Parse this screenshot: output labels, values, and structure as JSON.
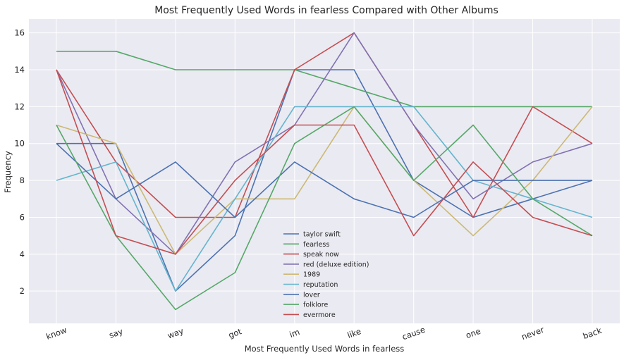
{
  "chart_data": {
    "type": "line",
    "title": "Most Frequently Used Words in fearless Compared with Other Albums",
    "xlabel": "Most Frequently Used Words in fearless",
    "ylabel": "Frequency",
    "categories": [
      "know",
      "say",
      "way",
      "got",
      "im",
      "like",
      "cause",
      "one",
      "never",
      "back"
    ],
    "ylim": [
      0.25,
      16.75
    ],
    "yticks": [
      2,
      4,
      6,
      8,
      10,
      12,
      14,
      16
    ],
    "grid": true,
    "legend_position": "lower-center",
    "series": [
      {
        "name": "taylor swift",
        "color": "#4C72B0",
        "values": [
          10,
          10,
          2,
          5,
          14,
          14,
          8,
          6,
          7,
          8
        ]
      },
      {
        "name": "fearless",
        "color": "#55A868",
        "values": [
          15,
          15,
          14,
          14,
          14,
          13,
          12,
          12,
          12,
          12
        ]
      },
      {
        "name": "speak now",
        "color": "#C44E52",
        "values": [
          14,
          9,
          6,
          6,
          14,
          16,
          11,
          6,
          12,
          10
        ]
      },
      {
        "name": "red (deluxe edition)",
        "color": "#8172B2",
        "values": [
          14,
          7,
          4,
          9,
          11,
          16,
          11,
          7,
          9,
          10
        ]
      },
      {
        "name": "1989",
        "color": "#CCB974",
        "values": [
          11,
          10,
          4,
          7,
          7,
          12,
          8,
          5,
          8,
          12
        ]
      },
      {
        "name": "reputation",
        "color": "#64B5CD",
        "values": [
          8,
          9,
          2,
          7,
          12,
          12,
          12,
          8,
          7,
          6
        ]
      },
      {
        "name": "lover",
        "color": "#4C72B0",
        "values": [
          10,
          7,
          9,
          6,
          9,
          7,
          6,
          8,
          8,
          8
        ]
      },
      {
        "name": "folklore",
        "color": "#55A868",
        "values": [
          11,
          5,
          1,
          3,
          10,
          12,
          8,
          11,
          7,
          5
        ]
      },
      {
        "name": "evermore",
        "color": "#C44E52",
        "values": [
          14,
          5,
          4,
          8,
          11,
          11,
          5,
          9,
          6,
          5
        ]
      }
    ]
  }
}
